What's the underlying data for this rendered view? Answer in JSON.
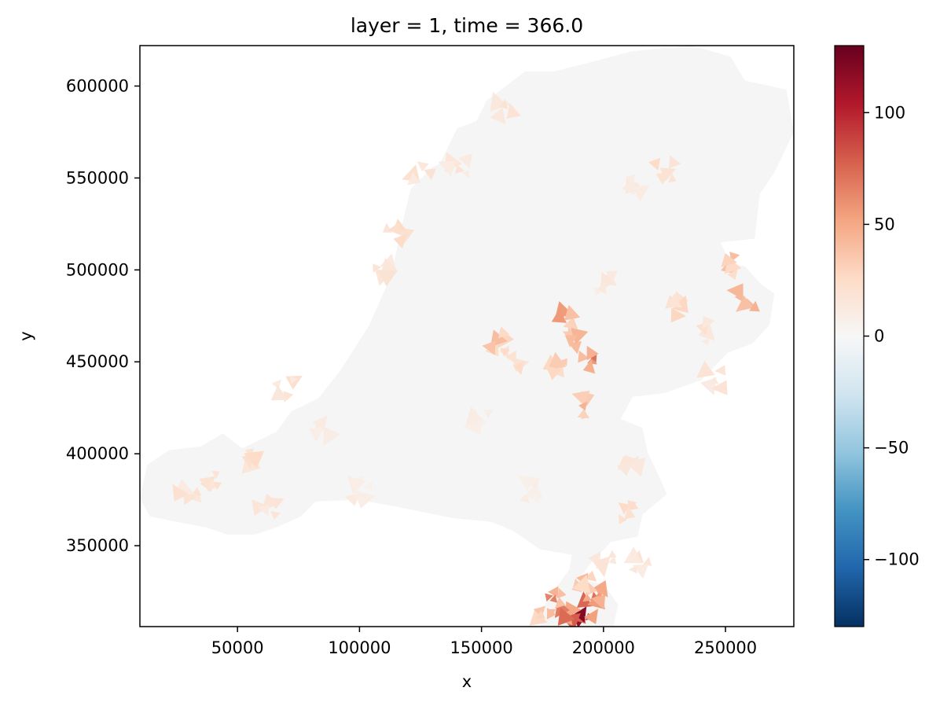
{
  "chart_data": {
    "type": "heatmap",
    "title": "layer = 1, time = 366.0",
    "xlabel": "x",
    "ylabel": "y",
    "xlim": [
      10000,
      278000
    ],
    "ylim": [
      306000,
      622000
    ],
    "xticks": [
      {
        "value": 50000,
        "label": "50000"
      },
      {
        "value": 100000,
        "label": "100000"
      },
      {
        "value": 150000,
        "label": "150000"
      },
      {
        "value": 200000,
        "label": "200000"
      },
      {
        "value": 250000,
        "label": "250000"
      }
    ],
    "yticks": [
      {
        "value": 350000,
        "label": "350000"
      },
      {
        "value": 400000,
        "label": "400000"
      },
      {
        "value": 450000,
        "label": "450000"
      },
      {
        "value": 500000,
        "label": "500000"
      },
      {
        "value": 550000,
        "label": "550000"
      },
      {
        "value": 600000,
        "label": "600000"
      }
    ],
    "colorbar": {
      "colormap": "RdBu_r",
      "range": [
        -130,
        130
      ],
      "ticks": [
        {
          "value": 100,
          "label": "100"
        },
        {
          "value": 50,
          "label": "50"
        },
        {
          "value": 0,
          "label": "0"
        },
        {
          "value": -50,
          "label": "−50"
        },
        {
          "value": -100,
          "label": "−100"
        }
      ],
      "colors": [
        "#053061",
        "#2166ac",
        "#4393c3",
        "#92c5de",
        "#d1e5f0",
        "#f7f7f7",
        "#fddbc7",
        "#f4a582",
        "#d6604d",
        "#b2182b",
        "#67001f"
      ]
    },
    "domain_outline": [
      [
        13000,
        394000
      ],
      [
        22000,
        402000
      ],
      [
        35000,
        404000
      ],
      [
        44000,
        411000
      ],
      [
        52000,
        403000
      ],
      [
        66000,
        412000
      ],
      [
        72000,
        423000
      ],
      [
        83000,
        430000
      ],
      [
        92000,
        445000
      ],
      [
        104000,
        470000
      ],
      [
        113000,
        497000
      ],
      [
        118000,
        528000
      ],
      [
        121000,
        544000
      ],
      [
        130000,
        556000
      ],
      [
        133000,
        558000
      ],
      [
        140000,
        577000
      ],
      [
        148000,
        581000
      ],
      [
        152000,
        592000
      ],
      [
        161000,
        601000
      ],
      [
        168000,
        608000
      ],
      [
        180000,
        608000
      ],
      [
        192000,
        612000
      ],
      [
        212000,
        619000
      ],
      [
        236000,
        622000
      ],
      [
        252000,
        616000
      ],
      [
        258000,
        603000
      ],
      [
        275000,
        598000
      ],
      [
        278000,
        575000
      ],
      [
        270000,
        553000
      ],
      [
        264000,
        541000
      ],
      [
        262000,
        517000
      ],
      [
        248000,
        515000
      ],
      [
        252000,
        503000
      ],
      [
        258000,
        502000
      ],
      [
        264000,
        493000
      ],
      [
        270000,
        487000
      ],
      [
        268000,
        470000
      ],
      [
        261000,
        460000
      ],
      [
        251000,
        455000
      ],
      [
        240000,
        440000
      ],
      [
        225000,
        433000
      ],
      [
        212000,
        431000
      ],
      [
        207000,
        419000
      ],
      [
        216000,
        414000
      ],
      [
        218000,
        401000
      ],
      [
        222000,
        390000
      ],
      [
        226000,
        378000
      ],
      [
        216000,
        367000
      ],
      [
        214000,
        355000
      ],
      [
        203000,
        352000
      ],
      [
        194000,
        339000
      ],
      [
        190000,
        332000
      ],
      [
        200000,
        329000
      ],
      [
        206000,
        318000
      ],
      [
        204000,
        306000
      ],
      [
        174000,
        306000
      ],
      [
        176000,
        318000
      ],
      [
        181000,
        328000
      ],
      [
        186000,
        337000
      ],
      [
        187000,
        345000
      ],
      [
        174000,
        348000
      ],
      [
        163000,
        358000
      ],
      [
        154000,
        363000
      ],
      [
        138000,
        365000
      ],
      [
        116000,
        371000
      ],
      [
        99000,
        375000
      ],
      [
        82000,
        374000
      ],
      [
        76000,
        366000
      ],
      [
        66000,
        360000
      ],
      [
        57000,
        356000
      ],
      [
        46000,
        356000
      ],
      [
        37000,
        360000
      ],
      [
        25000,
        363000
      ],
      [
        14000,
        366000
      ],
      [
        10000,
        376000
      ]
    ],
    "hotspots": [
      {
        "x": 190000,
        "y": 309000,
        "value": 115
      },
      {
        "x": 186000,
        "y": 314000,
        "value": 85
      },
      {
        "x": 196000,
        "y": 316000,
        "value": 78
      },
      {
        "x": 180000,
        "y": 320000,
        "value": 65
      },
      {
        "x": 198000,
        "y": 325000,
        "value": 55
      },
      {
        "x": 192000,
        "y": 329000,
        "value": 45
      },
      {
        "x": 176000,
        "y": 313000,
        "value": 40
      },
      {
        "x": 195000,
        "y": 451000,
        "value": 70
      },
      {
        "x": 186000,
        "y": 472000,
        "value": 55
      },
      {
        "x": 190000,
        "y": 462000,
        "value": 45
      },
      {
        "x": 182000,
        "y": 448000,
        "value": 35
      },
      {
        "x": 194000,
        "y": 426000,
        "value": 50
      },
      {
        "x": 155000,
        "y": 460000,
        "value": 40
      },
      {
        "x": 163000,
        "y": 452000,
        "value": 30
      },
      {
        "x": 258000,
        "y": 485000,
        "value": 45
      },
      {
        "x": 252000,
        "y": 502000,
        "value": 40
      },
      {
        "x": 232000,
        "y": 480000,
        "value": 30
      },
      {
        "x": 240000,
        "y": 466000,
        "value": 20
      },
      {
        "x": 40000,
        "y": 385000,
        "value": 28
      },
      {
        "x": 55000,
        "y": 398000,
        "value": 25
      },
      {
        "x": 30000,
        "y": 380000,
        "value": 20
      },
      {
        "x": 70000,
        "y": 435000,
        "value": 22
      },
      {
        "x": 85000,
        "y": 412000,
        "value": 15
      },
      {
        "x": 62000,
        "y": 370000,
        "value": 18
      },
      {
        "x": 100000,
        "y": 380000,
        "value": 12
      },
      {
        "x": 115000,
        "y": 518000,
        "value": 25
      },
      {
        "x": 110000,
        "y": 498000,
        "value": 18
      },
      {
        "x": 125000,
        "y": 553000,
        "value": 22
      },
      {
        "x": 140000,
        "y": 556000,
        "value": 18
      },
      {
        "x": 160000,
        "y": 588000,
        "value": 20
      },
      {
        "x": 225000,
        "y": 553000,
        "value": 25
      },
      {
        "x": 212000,
        "y": 545000,
        "value": 15
      },
      {
        "x": 210000,
        "y": 393000,
        "value": 20
      },
      {
        "x": 211000,
        "y": 367000,
        "value": 25
      },
      {
        "x": 200000,
        "y": 340000,
        "value": 18
      },
      {
        "x": 215000,
        "y": 340000,
        "value": 20
      },
      {
        "x": 200000,
        "y": 492000,
        "value": 15
      },
      {
        "x": 245000,
        "y": 440000,
        "value": 18
      },
      {
        "x": 150000,
        "y": 420000,
        "value": 10
      },
      {
        "x": 170000,
        "y": 380000,
        "value": 10
      }
    ]
  }
}
